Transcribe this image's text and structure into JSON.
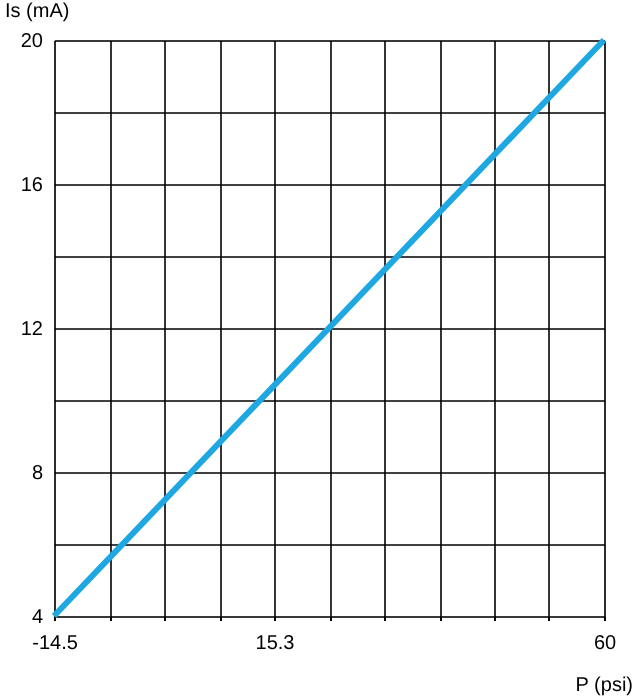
{
  "chart_data": {
    "type": "line",
    "xlabel": "P (psi)",
    "ylabel": "Is (mA)",
    "x": [
      -14.5,
      60
    ],
    "series": [
      {
        "color": "#1ea7e1",
        "values": [
          4,
          20
        ]
      }
    ],
    "xlim": [
      -14.5,
      60
    ],
    "ylim": [
      4,
      20
    ],
    "xticks": [
      -14.5,
      {
        "value": -7.05,
        "label": null
      },
      {
        "value": 0.4,
        "label": null
      },
      {
        "value": 7.85,
        "label": null
      },
      15.3,
      {
        "value": 22.75,
        "label": null
      },
      {
        "value": 30.2,
        "label": null
      },
      {
        "value": 37.65,
        "label": null
      },
      {
        "value": 45.1,
        "label": null
      },
      {
        "value": 52.55,
        "label": null
      },
      60
    ],
    "yticks": [
      4,
      {
        "value": 6,
        "label": null
      },
      8,
      {
        "value": 10,
        "label": null
      },
      12,
      {
        "value": 14,
        "label": null
      },
      16,
      {
        "value": 18,
        "label": null
      },
      20
    ],
    "grid": true,
    "marker": "none",
    "line_style": "solid"
  }
}
